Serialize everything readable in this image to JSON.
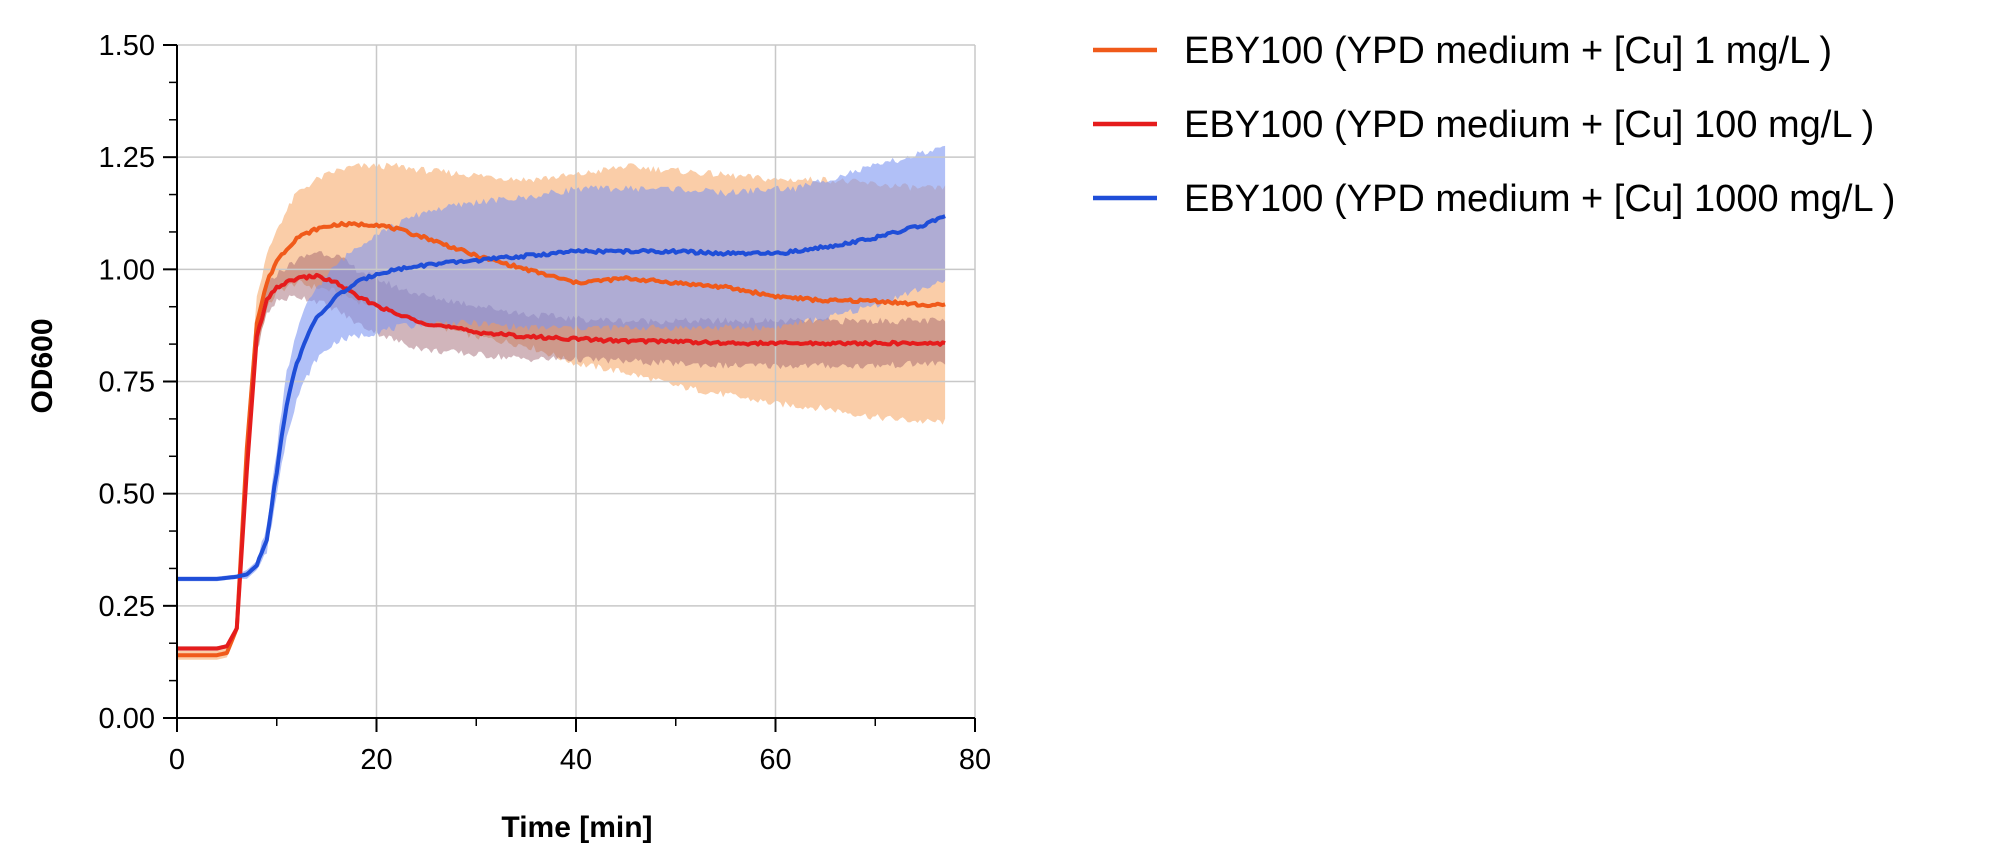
{
  "chart_data": {
    "type": "line",
    "title": "",
    "xlabel": "Time [min]",
    "ylabel": "OD600",
    "xlim": [
      0,
      80
    ],
    "ylim": [
      0,
      1.5
    ],
    "x_ticks": [
      "0",
      "20",
      "40",
      "60",
      "80"
    ],
    "y_ticks": [
      "0.00",
      "0.25",
      "0.50",
      "0.75",
      "1.00",
      "1.25",
      "1.50"
    ],
    "grid": true,
    "legend_position": "right",
    "series": [
      {
        "name": "EBY100 (YPD medium + [Cu] 1 mg/L )",
        "color": "#f05a1a",
        "band_color": "#f6a460",
        "x": [
          0,
          2,
          4,
          5,
          6,
          7,
          8,
          9,
          10,
          12,
          14,
          16,
          18,
          20,
          22,
          25,
          30,
          35,
          40,
          45,
          50,
          55,
          60,
          65,
          70,
          75,
          77
        ],
        "y": [
          0.14,
          0.14,
          0.14,
          0.145,
          0.2,
          0.6,
          0.88,
          0.97,
          1.02,
          1.07,
          1.09,
          1.1,
          1.1,
          1.1,
          1.09,
          1.07,
          1.03,
          1.0,
          0.97,
          0.98,
          0.97,
          0.96,
          0.94,
          0.93,
          0.93,
          0.92,
          0.92
        ],
        "lower": [
          0.13,
          0.13,
          0.13,
          0.135,
          0.19,
          0.55,
          0.82,
          0.91,
          0.95,
          0.97,
          0.96,
          0.95,
          0.93,
          0.92,
          0.9,
          0.88,
          0.85,
          0.83,
          0.79,
          0.77,
          0.74,
          0.72,
          0.7,
          0.69,
          0.67,
          0.66,
          0.66
        ],
        "upper": [
          0.15,
          0.15,
          0.15,
          0.155,
          0.21,
          0.65,
          0.94,
          1.03,
          1.09,
          1.17,
          1.2,
          1.22,
          1.23,
          1.23,
          1.23,
          1.22,
          1.21,
          1.2,
          1.21,
          1.23,
          1.22,
          1.21,
          1.2,
          1.2,
          1.19,
          1.18,
          1.18
        ]
      },
      {
        "name": "EBY100 (YPD medium + [Cu] 100 mg/L )",
        "color": "#e51c1c",
        "band_color": "#9a5a68",
        "x": [
          0,
          2,
          4,
          5,
          6,
          7,
          8,
          9,
          10,
          12,
          14,
          16,
          18,
          20,
          22,
          25,
          30,
          35,
          40,
          45,
          50,
          55,
          60,
          65,
          70,
          75,
          77
        ],
        "y": [
          0.155,
          0.155,
          0.155,
          0.16,
          0.2,
          0.55,
          0.85,
          0.93,
          0.96,
          0.98,
          0.985,
          0.97,
          0.94,
          0.92,
          0.9,
          0.88,
          0.86,
          0.85,
          0.845,
          0.84,
          0.84,
          0.835,
          0.835,
          0.835,
          0.835,
          0.835,
          0.835
        ],
        "lower": [
          0.15,
          0.15,
          0.15,
          0.155,
          0.19,
          0.53,
          0.82,
          0.9,
          0.93,
          0.94,
          0.93,
          0.91,
          0.88,
          0.86,
          0.84,
          0.82,
          0.81,
          0.8,
          0.8,
          0.795,
          0.79,
          0.785,
          0.785,
          0.785,
          0.785,
          0.79,
          0.79
        ],
        "upper": [
          0.16,
          0.16,
          0.16,
          0.165,
          0.21,
          0.57,
          0.88,
          0.96,
          0.99,
          1.02,
          1.04,
          1.03,
          1.0,
          0.98,
          0.96,
          0.94,
          0.92,
          0.9,
          0.89,
          0.885,
          0.885,
          0.885,
          0.885,
          0.885,
          0.885,
          0.885,
          0.885
        ]
      },
      {
        "name": "EBY100 (YPD medium + [Cu] 1000 mg/L )",
        "color": "#1f4ed8",
        "band_color": "#7d96f2",
        "x": [
          0,
          2,
          4,
          6,
          7,
          8,
          9,
          10,
          11,
          12,
          13,
          14,
          16,
          18,
          20,
          22,
          25,
          30,
          35,
          40,
          45,
          50,
          55,
          60,
          62,
          65,
          70,
          75,
          77
        ],
        "y": [
          0.31,
          0.31,
          0.31,
          0.315,
          0.32,
          0.34,
          0.4,
          0.55,
          0.7,
          0.79,
          0.85,
          0.89,
          0.94,
          0.97,
          0.99,
          1.0,
          1.01,
          1.02,
          1.03,
          1.04,
          1.04,
          1.04,
          1.035,
          1.035,
          1.04,
          1.05,
          1.07,
          1.1,
          1.12
        ],
        "lower": [
          0.305,
          0.305,
          0.305,
          0.31,
          0.31,
          0.33,
          0.37,
          0.5,
          0.63,
          0.71,
          0.76,
          0.8,
          0.84,
          0.85,
          0.86,
          0.87,
          0.88,
          0.88,
          0.87,
          0.87,
          0.87,
          0.87,
          0.87,
          0.87,
          0.88,
          0.89,
          0.92,
          0.96,
          0.97
        ],
        "upper": [
          0.315,
          0.315,
          0.315,
          0.32,
          0.33,
          0.35,
          0.43,
          0.6,
          0.77,
          0.86,
          0.92,
          0.96,
          1.01,
          1.05,
          1.08,
          1.1,
          1.13,
          1.15,
          1.16,
          1.18,
          1.18,
          1.18,
          1.17,
          1.18,
          1.18,
          1.2,
          1.23,
          1.26,
          1.27
        ]
      }
    ]
  }
}
